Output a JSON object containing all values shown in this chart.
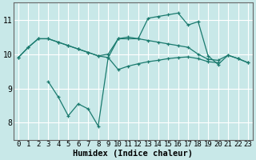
{
  "xlabel": "Humidex (Indice chaleur)",
  "bg_color": "#c8e8e8",
  "grid_color": "#ffffff",
  "line_color": "#1a7a6e",
  "x_values": [
    0,
    1,
    2,
    3,
    4,
    5,
    6,
    7,
    8,
    9,
    10,
    11,
    12,
    13,
    14,
    15,
    16,
    17,
    18,
    19,
    20,
    21,
    22,
    23
  ],
  "line1_upper": [
    9.9,
    10.2,
    10.45,
    10.45,
    10.35,
    10.25,
    10.15,
    10.05,
    9.95,
    10.0,
    10.45,
    10.45,
    10.45,
    10.4,
    10.35,
    10.3,
    10.25,
    10.2,
    10.0,
    9.85,
    9.82,
    9.97,
    9.87,
    9.75
  ],
  "line2_peak": [
    9.9,
    10.2,
    10.45,
    10.45,
    10.35,
    10.25,
    10.15,
    10.05,
    9.95,
    9.9,
    10.45,
    10.5,
    10.45,
    11.05,
    11.1,
    11.15,
    11.2,
    10.85,
    10.95,
    9.95,
    9.7,
    9.97,
    9.87,
    9.75
  ],
  "line3_low": [
    null,
    null,
    null,
    9.2,
    8.75,
    8.2,
    8.55,
    8.4,
    7.9,
    9.9,
    9.55,
    9.65,
    9.72,
    9.78,
    9.82,
    9.87,
    9.9,
    9.92,
    9.87,
    9.78,
    9.75,
    null,
    null,
    null
  ],
  "ylim": [
    7.5,
    11.5
  ],
  "yticks": [
    8,
    9,
    10,
    11
  ],
  "xticks": [
    0,
    1,
    2,
    3,
    4,
    5,
    6,
    7,
    8,
    9,
    10,
    11,
    12,
    13,
    14,
    15,
    16,
    17,
    18,
    19,
    20,
    21,
    22,
    23
  ],
  "tick_fontsize": 6.5,
  "xlabel_fontsize": 7.5
}
